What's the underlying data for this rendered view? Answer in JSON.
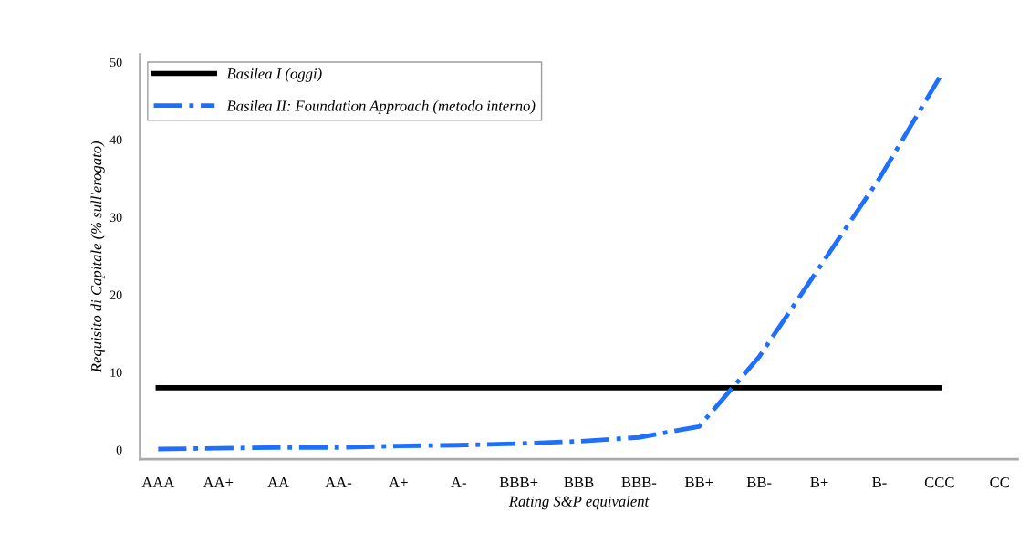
{
  "chart_data": {
    "type": "line",
    "xlabel": "Rating S&P equivalent",
    "ylabel": "Requisito di Capitale (% sull'erogato)",
    "categories": [
      "AAA",
      "AA+",
      "AA",
      "AA-",
      "A+",
      "A-",
      "BBB+",
      "BBB",
      "BBB-",
      "BB+",
      "BB-",
      "B+",
      "B-",
      "CCC",
      "CC"
    ],
    "series": [
      {
        "name": "Basilea I (oggi)",
        "color": "#000000",
        "line_style": "solid",
        "values": [
          8,
          8,
          8,
          8,
          8,
          8,
          8,
          8,
          8,
          8,
          8,
          8,
          8,
          8,
          null
        ]
      },
      {
        "name": "Basilea II: Foundation Approach (metodo interno)",
        "color": "#1f6fff",
        "line_style": "dashdot",
        "values": [
          0.1,
          0.2,
          0.3,
          0.3,
          0.5,
          0.6,
          0.8,
          1.1,
          1.6,
          3,
          12,
          23.5,
          35,
          48,
          null
        ]
      }
    ],
    "ylim": [
      -1.2,
      51
    ],
    "yticks": [
      0,
      10,
      20,
      30,
      40,
      50
    ],
    "grid": false,
    "legend": "top left",
    "marker": "none"
  }
}
